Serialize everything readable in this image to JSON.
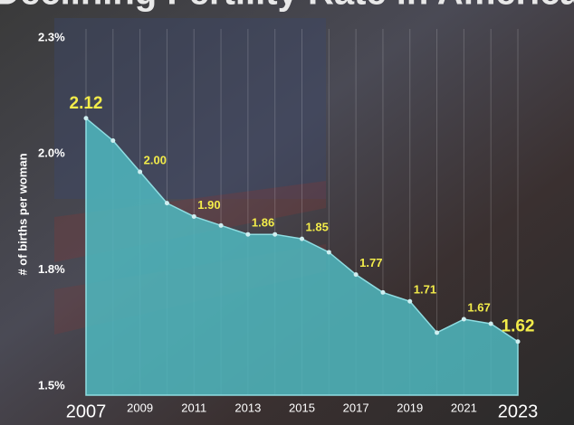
{
  "chart_data": {
    "type": "area",
    "title": "Declining Fertility Rate in America",
    "y_label": "# of births per woman",
    "categories": [
      "2007",
      null,
      "2009",
      null,
      "2011",
      null,
      "2013",
      null,
      "2015",
      null,
      "2017",
      null,
      "2019",
      null,
      "2021",
      null,
      "2023"
    ],
    "values": [
      2.12,
      2.07,
      2.0,
      1.93,
      1.9,
      1.88,
      1.86,
      1.86,
      1.85,
      1.82,
      1.77,
      1.73,
      1.71,
      1.64,
      1.67,
      1.66,
      1.62
    ],
    "value_labels": [
      "2.12",
      null,
      "2.00",
      null,
      "1.90",
      null,
      "1.86",
      null,
      "1.85",
      null,
      "1.77",
      null,
      "1.71",
      null,
      "1.67",
      null,
      "1.62"
    ],
    "color": "#4fb8c0",
    "label_color": "#f3ec4a",
    "ylim": [
      1.5,
      2.32
    ],
    "yticks": [
      {
        "value": 2.3,
        "label": "2.3%"
      },
      {
        "value": 2.04,
        "label": "2.0%"
      },
      {
        "value": 1.78,
        "label": "1.8%"
      },
      {
        "value": 1.52,
        "label": "1.5%"
      }
    ],
    "grid": true
  }
}
